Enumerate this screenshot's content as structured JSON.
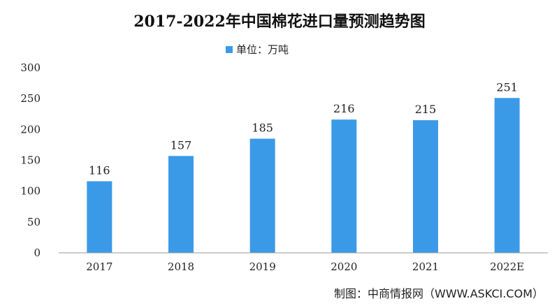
{
  "chart_data": {
    "type": "bar",
    "title": "2017-2022年中国棉花进口量预测趋势图",
    "legend": "单位：万吨",
    "legend_position": "top",
    "categories": [
      "2017",
      "2018",
      "2019",
      "2020",
      "2021",
      "2022E"
    ],
    "series": [
      {
        "name": "单位：万吨",
        "values": [
          116,
          157,
          185,
          216,
          215,
          251
        ]
      }
    ],
    "data_labels": [
      "116",
      "157",
      "185",
      "216",
      "215",
      "251"
    ],
    "yticks": [
      "0",
      "50",
      "100",
      "150",
      "200",
      "250",
      "300"
    ],
    "ylim": [
      0,
      300
    ],
    "xlabel": "",
    "ylabel": "",
    "grid": false
  },
  "source": "制图：中商情报网（WWW.ASKCI.COM）",
  "colors": {
    "bar": "#3b9ae8",
    "axis": "#9a9a9a"
  }
}
